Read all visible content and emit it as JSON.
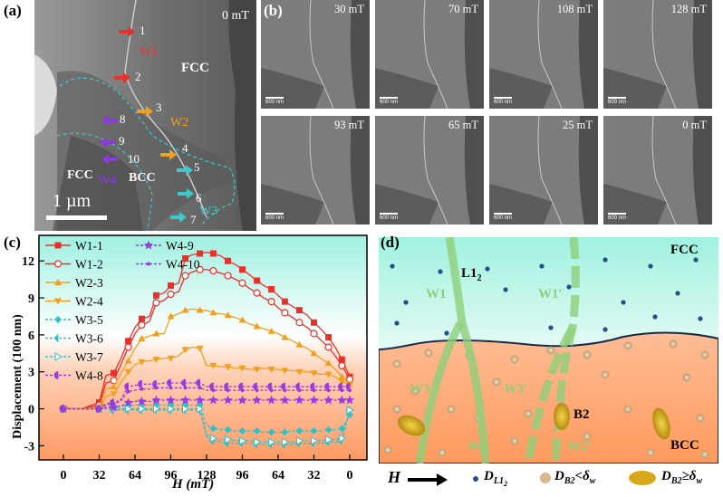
{
  "panel_labels": {
    "a": "(a)",
    "b": "(b)",
    "c": "(c)",
    "d": "(d)"
  },
  "panel_a": {
    "field": "0 mT",
    "phases": {
      "fcc_top": "FCC",
      "fcc_bottom": "FCC",
      "bcc": "BCC"
    },
    "walls": {
      "w1": "W1",
      "w2": "W2",
      "w3": "W3",
      "w4": "W4"
    },
    "arrow_numbers": [
      "1",
      "2",
      "3",
      "4",
      "5",
      "6",
      "7",
      "8",
      "9",
      "10"
    ],
    "scalebar": "1 µm",
    "colors": {
      "red": "#e8312a",
      "orange": "#f0a020",
      "cyan": "#40c8c8",
      "purple": "#8a3ae0"
    }
  },
  "panel_b": {
    "frames": [
      {
        "field": "30 mT",
        "scalebar": "600 nm"
      },
      {
        "field": "70 mT",
        "scalebar": "600 nm"
      },
      {
        "field": "108 mT",
        "scalebar": "600 nm"
      },
      {
        "field": "128 mT",
        "scalebar": "600 nm"
      },
      {
        "field": "93 mT",
        "scalebar": "600 nm"
      },
      {
        "field": "65 mT",
        "scalebar": "600 nm"
      },
      {
        "field": "25 mT",
        "scalebar": "600 nm"
      },
      {
        "field": "0 mT",
        "scalebar": "600 nm"
      }
    ]
  },
  "panel_d": {
    "fcc": "FCC",
    "bcc": "BCC",
    "l12": "L1",
    "l12_sub": "2",
    "b2": "B2",
    "walls": [
      "W1",
      "W1′",
      "W3",
      "W3′",
      "W2",
      "W2′"
    ],
    "legend": {
      "h": "H",
      "dl12": "D",
      "dl12_sub": "L1",
      "dl12_sub2": "2",
      "db2_small": "D",
      "db2_small_sub": "B2",
      "db2_small_rel": "<δ",
      "db2_small_w": "w",
      "db2_big": "D",
      "db2_big_sub": "B2",
      "db2_big_rel": "≥δ",
      "db2_big_w": "w"
    }
  },
  "chart_data": {
    "type": "line",
    "xlabel": "H (mT)",
    "ylabel": "Displacement (100 nm)",
    "x_ticks": [
      "0",
      "32",
      "64",
      "96",
      "128",
      "96",
      "64",
      "32",
      "0"
    ],
    "y_ticks": [
      "-3",
      "0",
      "3",
      "6",
      "9",
      "12"
    ],
    "ylim": [
      -4,
      14
    ],
    "x": [
      0,
      16,
      32,
      38,
      45,
      51,
      58,
      64,
      70,
      77,
      83,
      90,
      96,
      103,
      109,
      115,
      122,
      128,
      134,
      141,
      147,
      154,
      160,
      166,
      173,
      179,
      186,
      192,
      198,
      205,
      211,
      218,
      224,
      230,
      237,
      243,
      249,
      256
    ],
    "series": [
      {
        "name": "W1-1",
        "color": "#e8312a",
        "marker": "square",
        "values": [
          0,
          0,
          0.5,
          2.7,
          2.9,
          4.0,
          5.5,
          6.6,
          7.3,
          7.5,
          9.2,
          9.4,
          10.0,
          10.2,
          12.2,
          12.5,
          12.6,
          12.7,
          12.6,
          12.4,
          12.0,
          11.7,
          11.3,
          10.9,
          10.4,
          10.0,
          9.7,
          9.2,
          8.7,
          8.3,
          8.0,
          7.6,
          7.0,
          6.5,
          5.8,
          5.0,
          4.0,
          2.6
        ]
      },
      {
        "name": "W1-2",
        "color": "#e8312a",
        "marker": "circle-open",
        "values": [
          0,
          0,
          0.3,
          2.1,
          2.3,
          3.5,
          5.0,
          6.1,
          6.8,
          7.1,
          8.6,
          8.8,
          9.3,
          9.5,
          10.8,
          11.1,
          11.3,
          11.3,
          11.2,
          11.0,
          10.8,
          10.5,
          10.2,
          9.8,
          9.4,
          9.0,
          8.7,
          8.2,
          7.8,
          7.4,
          7.0,
          6.6,
          6.1,
          5.6,
          5.0,
          4.3,
          3.5,
          2.4
        ]
      },
      {
        "name": "W2-3",
        "color": "#f0a020",
        "marker": "triangle",
        "values": [
          0,
          0,
          0.1,
          1.6,
          1.8,
          2.8,
          3.9,
          4.9,
          5.7,
          5.9,
          6.1,
          6.1,
          7.5,
          7.7,
          8.0,
          8.1,
          8.0,
          8.0,
          7.8,
          7.7,
          7.6,
          7.4,
          7.2,
          6.9,
          6.7,
          6.5,
          6.3,
          6.1,
          5.8,
          5.5,
          5.2,
          4.9,
          4.5,
          4.1,
          3.7,
          3.2,
          2.6,
          2.0
        ]
      },
      {
        "name": "W2-4",
        "color": "#f0a020",
        "marker": "triangle-down",
        "values": [
          0,
          0,
          0,
          1.0,
          1.2,
          2.1,
          3.0,
          3.6,
          3.8,
          3.9,
          4.0,
          4.1,
          4.1,
          4.3,
          4.8,
          5.0,
          4.9,
          3.5,
          3.5,
          3.4,
          3.4,
          3.3,
          3.3,
          3.2,
          3.2,
          3.3,
          3.2,
          3.2,
          3.1,
          3.1,
          3.0,
          3.0,
          2.9,
          2.8,
          2.8,
          2.6,
          2.2,
          2.0
        ]
      },
      {
        "name": "W3-5",
        "color": "#30c0c8",
        "marker": "diamond",
        "values": [
          0,
          0,
          0,
          0.1,
          0.2,
          0.2,
          0.3,
          0.3,
          0.3,
          0.3,
          0.3,
          0.3,
          0.3,
          0.3,
          0.3,
          0.3,
          0.3,
          -1.3,
          -1.6,
          -1.7,
          -1.7,
          -1.8,
          -1.8,
          -1.8,
          -1.8,
          -1.9,
          -1.9,
          -1.9,
          -1.9,
          -1.8,
          -1.8,
          -1.8,
          -1.8,
          -1.8,
          -1.7,
          -1.7,
          -1.6,
          -0.5
        ]
      },
      {
        "name": "W3-6",
        "color": "#30c0c8",
        "marker": "half-left",
        "values": [
          0,
          0,
          0,
          0,
          -0.1,
          -0.1,
          -0.1,
          -0.1,
          -0.1,
          -0.1,
          -0.1,
          -0.1,
          -0.1,
          -0.1,
          -0.1,
          -0.1,
          -0.1,
          -2.3,
          -2.6,
          -2.7,
          -2.8,
          -2.8,
          -2.8,
          -2.8,
          -2.9,
          -2.9,
          -2.9,
          -2.9,
          -2.9,
          -2.9,
          -2.8,
          -2.8,
          -2.8,
          -2.8,
          -2.7,
          -2.7,
          -2.6,
          -0.1
        ]
      },
      {
        "name": "W3-7",
        "color": "#30c0c8",
        "marker": "triangle-right",
        "values": [
          0,
          0,
          0,
          0,
          0,
          0,
          0,
          0,
          0,
          0,
          0,
          0,
          0,
          0,
          0,
          0,
          0,
          -2.1,
          -2.4,
          -2.5,
          -2.5,
          -2.6,
          -2.6,
          -2.6,
          -2.7,
          -2.7,
          -2.7,
          -2.7,
          -2.7,
          -2.7,
          -2.6,
          -2.6,
          -2.6,
          -2.6,
          -2.5,
          -2.5,
          -2.4,
          -0.1
        ]
      },
      {
        "name": "W4-8",
        "color": "#9a3ae0",
        "marker": "half-circle",
        "values": [
          0,
          0,
          0,
          0.4,
          0.5,
          0.7,
          1.8,
          1.9,
          2.0,
          2.0,
          2.0,
          2.1,
          2.1,
          2.1,
          2.1,
          2.1,
          2.1,
          1.8,
          1.8,
          1.8,
          1.8,
          1.8,
          1.8,
          1.8,
          1.8,
          1.8,
          1.8,
          1.8,
          1.8,
          1.8,
          1.8,
          1.8,
          1.8,
          1.8,
          1.8,
          1.8,
          1.8,
          1.8
        ]
      },
      {
        "name": "W4-9",
        "color": "#9a3ae0",
        "marker": "star",
        "values": [
          0,
          0,
          0,
          0.1,
          0.1,
          0.2,
          0.5,
          0.6,
          0.6,
          0.6,
          0.7,
          0.7,
          0.7,
          0.7,
          0.7,
          0.7,
          0.7,
          0.7,
          0.7,
          0.7,
          0.7,
          0.7,
          0.7,
          0.7,
          0.7,
          0.7,
          0.7,
          0.7,
          0.7,
          0.7,
          0.7,
          0.7,
          0.7,
          0.7,
          0.7,
          0.7,
          0.7,
          0.7
        ]
      },
      {
        "name": "W4-10",
        "color": "#9a3ae0",
        "marker": "dot",
        "values": [
          0,
          0,
          0,
          0.3,
          0.4,
          0.6,
          1.4,
          1.5,
          1.6,
          1.6,
          1.7,
          1.7,
          1.7,
          1.7,
          1.7,
          1.7,
          1.7,
          1.5,
          1.5,
          1.5,
          1.5,
          1.5,
          1.5,
          1.5,
          1.5,
          1.5,
          1.5,
          1.5,
          1.5,
          1.5,
          1.5,
          1.5,
          1.5,
          1.5,
          1.5,
          1.5,
          1.5,
          1.5
        ]
      }
    ]
  }
}
